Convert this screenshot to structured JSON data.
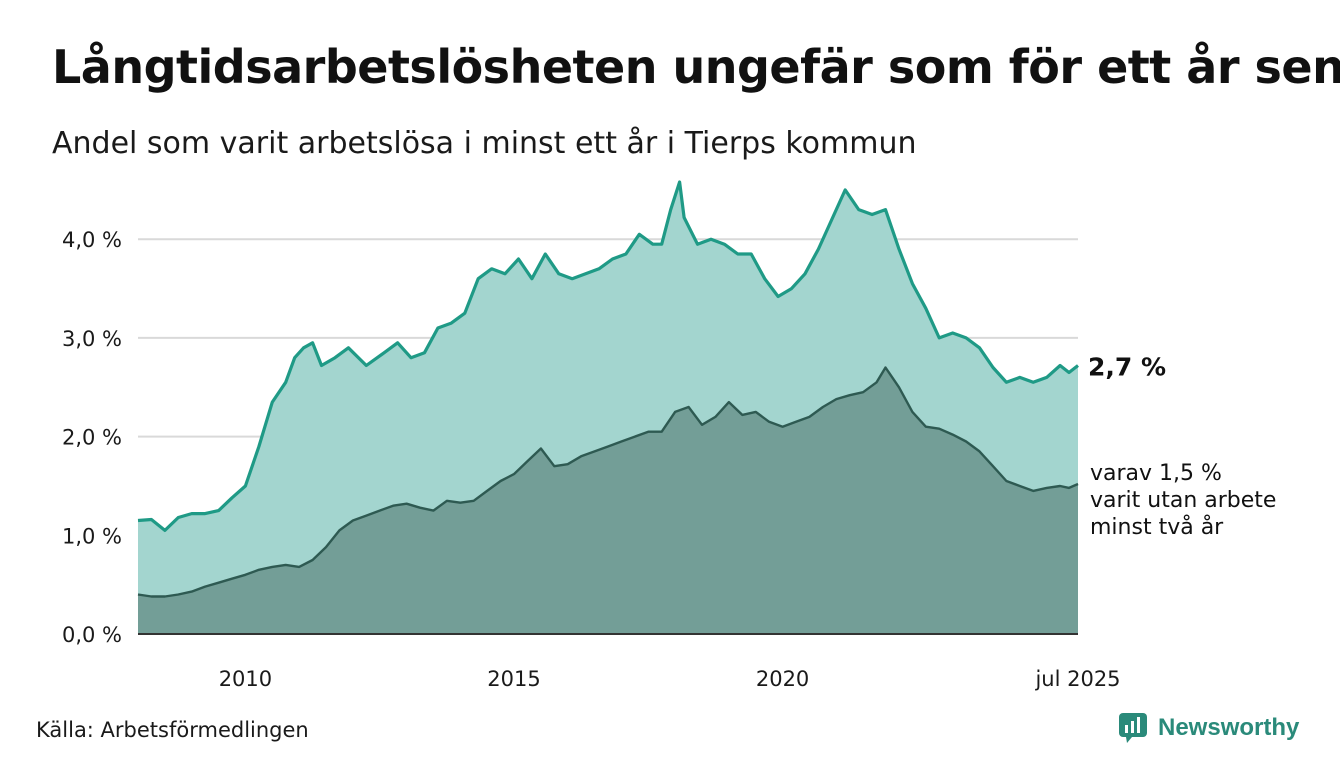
{
  "title": "Långtidsarbetslösheten ungefär som för ett år sen",
  "subtitle": "Andel som varit arbetslösa i minst ett år i Tierps kommun",
  "source": "Källa: Arbetsförmedlingen",
  "brand": "Newsworthy",
  "colors": {
    "total_line": "#1f9a86",
    "total_fill": "#a3d5cf",
    "sub_line": "#2e5a52",
    "sub_fill": "#739e97",
    "grid": "#d9d9d9"
  },
  "chart_data": {
    "type": "area",
    "x_start": "2008-01",
    "x_end": "2025-07",
    "x_ticks": [
      "2010",
      "2015",
      "2020",
      "jul 2025"
    ],
    "y_ticks": [
      "0,0 %",
      "1,0 %",
      "2,0 %",
      "3,0 %",
      "4,0 %"
    ],
    "ylim": [
      0,
      4.6
    ],
    "grid": true,
    "series": [
      {
        "key": "total",
        "label": "2,7 %",
        "points": [
          [
            "2008-01",
            1.15
          ],
          [
            "2008-04",
            1.16
          ],
          [
            "2008-07",
            1.05
          ],
          [
            "2008-10",
            1.18
          ],
          [
            "2009-01",
            1.22
          ],
          [
            "2009-04",
            1.22
          ],
          [
            "2009-07",
            1.25
          ],
          [
            "2009-10",
            1.38
          ],
          [
            "2010-01",
            1.5
          ],
          [
            "2010-04",
            1.9
          ],
          [
            "2010-07",
            2.35
          ],
          [
            "2010-10",
            2.55
          ],
          [
            "2010-12",
            2.8
          ],
          [
            "2011-02",
            2.9
          ],
          [
            "2011-04",
            2.95
          ],
          [
            "2011-06",
            2.72
          ],
          [
            "2011-09",
            2.8
          ],
          [
            "2011-12",
            2.9
          ],
          [
            "2012-04",
            2.72
          ],
          [
            "2012-08",
            2.85
          ],
          [
            "2012-11",
            2.95
          ],
          [
            "2013-02",
            2.8
          ],
          [
            "2013-05",
            2.85
          ],
          [
            "2013-08",
            3.1
          ],
          [
            "2013-11",
            3.15
          ],
          [
            "2014-02",
            3.25
          ],
          [
            "2014-05",
            3.6
          ],
          [
            "2014-08",
            3.7
          ],
          [
            "2014-11",
            3.65
          ],
          [
            "2015-02",
            3.8
          ],
          [
            "2015-05",
            3.6
          ],
          [
            "2015-08",
            3.85
          ],
          [
            "2015-11",
            3.65
          ],
          [
            "2016-02",
            3.6
          ],
          [
            "2016-05",
            3.65
          ],
          [
            "2016-08",
            3.7
          ],
          [
            "2016-11",
            3.8
          ],
          [
            "2017-02",
            3.85
          ],
          [
            "2017-05",
            4.05
          ],
          [
            "2017-08",
            3.95
          ],
          [
            "2017-10",
            3.95
          ],
          [
            "2017-12",
            4.3
          ],
          [
            "2018-02",
            4.58
          ],
          [
            "2018-03",
            4.22
          ],
          [
            "2018-06",
            3.95
          ],
          [
            "2018-09",
            4.0
          ],
          [
            "2018-12",
            3.95
          ],
          [
            "2019-03",
            3.85
          ],
          [
            "2019-06",
            3.85
          ],
          [
            "2019-09",
            3.6
          ],
          [
            "2019-12",
            3.42
          ],
          [
            "2020-03",
            3.5
          ],
          [
            "2020-06",
            3.65
          ],
          [
            "2020-09",
            3.9
          ],
          [
            "2020-12",
            4.2
          ],
          [
            "2021-03",
            4.5
          ],
          [
            "2021-06",
            4.3
          ],
          [
            "2021-09",
            4.25
          ],
          [
            "2021-12",
            4.3
          ],
          [
            "2022-03",
            3.9
          ],
          [
            "2022-06",
            3.55
          ],
          [
            "2022-09",
            3.3
          ],
          [
            "2022-12",
            3.0
          ],
          [
            "2023-03",
            3.05
          ],
          [
            "2023-06",
            3.0
          ],
          [
            "2023-09",
            2.9
          ],
          [
            "2023-12",
            2.7
          ],
          [
            "2024-03",
            2.55
          ],
          [
            "2024-06",
            2.6
          ],
          [
            "2024-09",
            2.55
          ],
          [
            "2024-12",
            2.6
          ],
          [
            "2025-03",
            2.72
          ],
          [
            "2025-05",
            2.65
          ],
          [
            "2025-07",
            2.72
          ]
        ]
      },
      {
        "key": "two_years",
        "label_lines": [
          "varav 1,5 %",
          "varit utan arbete",
          "minst två år"
        ],
        "points": [
          [
            "2008-01",
            0.4
          ],
          [
            "2008-04",
            0.38
          ],
          [
            "2008-07",
            0.38
          ],
          [
            "2008-10",
            0.4
          ],
          [
            "2009-01",
            0.43
          ],
          [
            "2009-04",
            0.48
          ],
          [
            "2009-07",
            0.52
          ],
          [
            "2009-10",
            0.56
          ],
          [
            "2010-01",
            0.6
          ],
          [
            "2010-04",
            0.65
          ],
          [
            "2010-07",
            0.68
          ],
          [
            "2010-10",
            0.7
          ],
          [
            "2011-01",
            0.68
          ],
          [
            "2011-04",
            0.75
          ],
          [
            "2011-07",
            0.88
          ],
          [
            "2011-10",
            1.05
          ],
          [
            "2012-01",
            1.15
          ],
          [
            "2012-04",
            1.2
          ],
          [
            "2012-07",
            1.25
          ],
          [
            "2012-10",
            1.3
          ],
          [
            "2013-01",
            1.32
          ],
          [
            "2013-04",
            1.28
          ],
          [
            "2013-07",
            1.25
          ],
          [
            "2013-10",
            1.35
          ],
          [
            "2014-01",
            1.33
          ],
          [
            "2014-04",
            1.35
          ],
          [
            "2014-07",
            1.45
          ],
          [
            "2014-10",
            1.55
          ],
          [
            "2015-01",
            1.62
          ],
          [
            "2015-04",
            1.75
          ],
          [
            "2015-07",
            1.88
          ],
          [
            "2015-10",
            1.7
          ],
          [
            "2016-01",
            1.72
          ],
          [
            "2016-04",
            1.8
          ],
          [
            "2016-07",
            1.85
          ],
          [
            "2016-10",
            1.9
          ],
          [
            "2017-01",
            1.95
          ],
          [
            "2017-04",
            2.0
          ],
          [
            "2017-07",
            2.05
          ],
          [
            "2017-10",
            2.05
          ],
          [
            "2018-01",
            2.25
          ],
          [
            "2018-04",
            2.3
          ],
          [
            "2018-07",
            2.12
          ],
          [
            "2018-10",
            2.2
          ],
          [
            "2019-01",
            2.35
          ],
          [
            "2019-04",
            2.22
          ],
          [
            "2019-07",
            2.25
          ],
          [
            "2019-10",
            2.15
          ],
          [
            "2020-01",
            2.1
          ],
          [
            "2020-04",
            2.15
          ],
          [
            "2020-07",
            2.2
          ],
          [
            "2020-10",
            2.3
          ],
          [
            "2021-01",
            2.38
          ],
          [
            "2021-04",
            2.42
          ],
          [
            "2021-07",
            2.45
          ],
          [
            "2021-10",
            2.55
          ],
          [
            "2021-12",
            2.7
          ],
          [
            "2022-03",
            2.5
          ],
          [
            "2022-06",
            2.25
          ],
          [
            "2022-09",
            2.1
          ],
          [
            "2022-12",
            2.08
          ],
          [
            "2023-03",
            2.02
          ],
          [
            "2023-06",
            1.95
          ],
          [
            "2023-09",
            1.85
          ],
          [
            "2023-12",
            1.7
          ],
          [
            "2024-03",
            1.55
          ],
          [
            "2024-06",
            1.5
          ],
          [
            "2024-09",
            1.45
          ],
          [
            "2024-12",
            1.48
          ],
          [
            "2025-03",
            1.5
          ],
          [
            "2025-05",
            1.48
          ],
          [
            "2025-07",
            1.52
          ]
        ]
      }
    ]
  }
}
